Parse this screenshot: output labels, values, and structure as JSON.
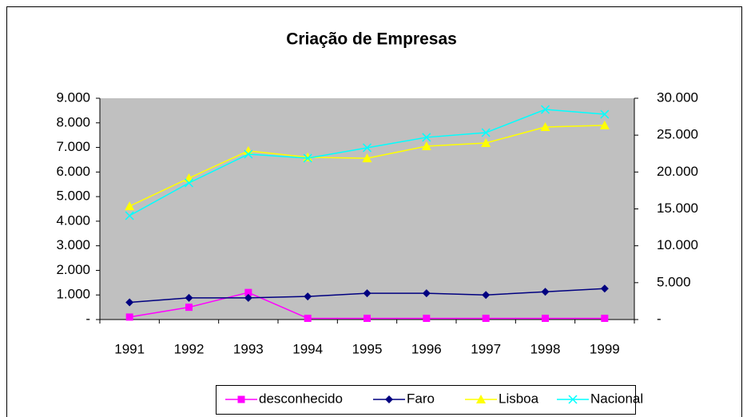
{
  "chart_data": {
    "type": "line",
    "title": "Criação de Empresas",
    "categories": [
      "1991",
      "1992",
      "1993",
      "1994",
      "1995",
      "1996",
      "1997",
      "1998",
      "1999"
    ],
    "series": [
      {
        "name": "desconhecido",
        "color": "#ff00ff",
        "marker": "square",
        "values": [
          100,
          500,
          1100,
          50,
          50,
          50,
          50,
          50,
          50
        ]
      },
      {
        "name": "Faro",
        "color": "#000080",
        "marker": "diamond",
        "values": [
          700,
          880,
          880,
          940,
          1070,
          1070,
          1000,
          1130,
          1260
        ]
      },
      {
        "name": "Lisboa",
        "color": "#ffff00",
        "marker": "triangle",
        "values": [
          4610,
          5750,
          6860,
          6600,
          6560,
          7050,
          7180,
          7830,
          7900
        ]
      },
      {
        "name": "Nacional",
        "color": "#00ffff",
        "marker": "x",
        "axis": "y2",
        "values": [
          14080,
          18520,
          22420,
          21880,
          23290,
          24700,
          25340,
          28480,
          27830
        ]
      }
    ],
    "ylim": [
      0,
      9000
    ],
    "yticks": [
      {
        "value": 0,
        "label": "-"
      },
      {
        "value": 1000,
        "label": "1.000"
      },
      {
        "value": 2000,
        "label": "2.000"
      },
      {
        "value": 3000,
        "label": "3.000"
      },
      {
        "value": 4000,
        "label": "4.000"
      },
      {
        "value": 5000,
        "label": "5.000"
      },
      {
        "value": 6000,
        "label": "6.000"
      },
      {
        "value": 7000,
        "label": "7.000"
      },
      {
        "value": 8000,
        "label": "8.000"
      },
      {
        "value": 9000,
        "label": "9.000"
      }
    ],
    "y2lim": [
      0,
      30000
    ],
    "y2ticks": [
      {
        "value": 0,
        "label": "-"
      },
      {
        "value": 5000,
        "label": "5.000"
      },
      {
        "value": 10000,
        "label": "10.000"
      },
      {
        "value": 15000,
        "label": "15.000"
      },
      {
        "value": 20000,
        "label": "20.000"
      },
      {
        "value": 25000,
        "label": "25.000"
      },
      {
        "value": 30000,
        "label": "30.000"
      }
    ],
    "grid": false,
    "legend": "bottom",
    "plot_background": "#c0c0c0"
  }
}
